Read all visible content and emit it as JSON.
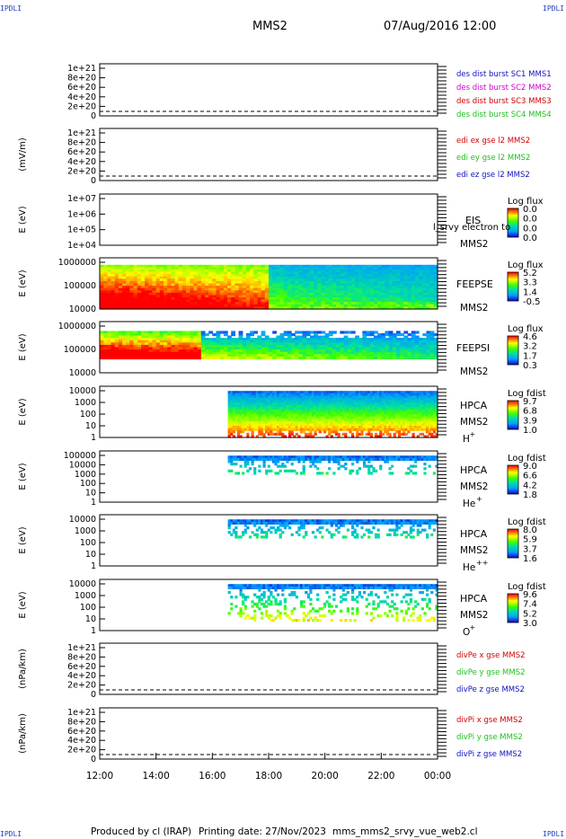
{
  "header": {
    "spacecraft": "MMS2",
    "datetime": "07/Aug/2016 12:00",
    "corner_label": "IPDLI"
  },
  "footer": {
    "producer": "Produced by cl (IRAP)",
    "printing": "Printing date: 27/Nov/2023",
    "script": "mms_mms2_srvy_vue_web2.cl"
  },
  "time_axis": {
    "range_hours": [
      12,
      24
    ],
    "tick_labels": [
      "12:00",
      "14:00",
      "16:00",
      "18:00",
      "20:00",
      "22:00",
      "00:00"
    ]
  },
  "colors": {
    "red": "#d40000",
    "magenta": "#d000d0",
    "green": "#20c020",
    "blue": "#1010c0"
  },
  "chart_data": [
    {
      "type": "line",
      "panel": "des-dist",
      "ylabel": "",
      "y_ticks": [
        "1e+21",
        "8e+20",
        "6e+20",
        "4e+20",
        "2e+20",
        "0"
      ],
      "legend": [
        {
          "text": "des dist burst SC1 MMS1",
          "color": "#1010c0"
        },
        {
          "text": "des dist burst SC2 MMS2",
          "color": "#d000d0"
        },
        {
          "text": "des dist burst SC3 MMS3",
          "color": "#d40000"
        },
        {
          "text": "des dist burst SC4 MMS4",
          "color": "#20c020"
        }
      ],
      "series": []
    },
    {
      "type": "line",
      "panel": "edi",
      "ylabel": "(mV/m)",
      "y_ticks": [
        "1e+21",
        "8e+20",
        "6e+20",
        "4e+20",
        "2e+20",
        "0"
      ],
      "legend": [
        {
          "text": "edi ex gse l2 MMS2",
          "color": "#d40000"
        },
        {
          "text": "edi ey gse l2 MMS2",
          "color": "#20c020"
        },
        {
          "text": "edi ez gse l2 MMS2",
          "color": "#1010c0"
        }
      ],
      "series": []
    },
    {
      "type": "heatmap",
      "panel": "eis",
      "ylabel": "E (eV)",
      "y_ticks": [
        "1e+07",
        "1e+06",
        "1e+05",
        "1e+04"
      ],
      "y_log_range": [
        4,
        7
      ],
      "instrument": "EIS",
      "overlay_text": "l_srvy electron to",
      "sc": "MMS2",
      "species": "",
      "colorbar": {
        "title": "Log flux",
        "ticks": [
          "0.0",
          "0.0",
          "0.0",
          "0.0"
        ]
      },
      "has_data": false
    },
    {
      "type": "heatmap",
      "panel": "feepse",
      "ylabel": "E (eV)",
      "y_ticks": [
        "1000000",
        "100000",
        "10000"
      ],
      "y_log_range": [
        4,
        6
      ],
      "instrument": "FEEPSE",
      "sc": "MMS2",
      "species": "",
      "colorbar": {
        "title": "Log flux",
        "ticks": [
          "5.2",
          "3.3",
          "1.4",
          "-0.5"
        ]
      },
      "has_data": true,
      "data_start_hour": 12,
      "data_end_hour": 24
    },
    {
      "type": "heatmap",
      "panel": "feepsi",
      "ylabel": "E (eV)",
      "y_ticks": [
        "1000000",
        "100000",
        "10000"
      ],
      "y_log_range": [
        4,
        6
      ],
      "instrument": "FEEPSI",
      "sc": "MMS2",
      "species": "",
      "colorbar": {
        "title": "Log flux",
        "ticks": [
          "4.6",
          "3.2",
          "1.7",
          "0.3"
        ]
      },
      "has_data": true,
      "data_start_hour": 12,
      "data_end_hour": 24
    },
    {
      "type": "heatmap",
      "panel": "hpca-h",
      "ylabel": "E (eV)",
      "y_ticks": [
        "10000",
        "1000",
        "100",
        "10",
        "1"
      ],
      "y_log_range": [
        0,
        4.6
      ],
      "instrument": "HPCA",
      "sc": "MMS2",
      "species": "H",
      "charge": "+",
      "colorbar": {
        "title": "Log fdist",
        "ticks": [
          "9.7",
          "6.8",
          "3.9",
          "1.0"
        ]
      },
      "has_data": true,
      "data_start_hour": 16.55,
      "data_end_hour": 24
    },
    {
      "type": "heatmap",
      "panel": "hpca-he",
      "ylabel": "E (eV)",
      "y_ticks": [
        "100000",
        "10000",
        "1000",
        "100",
        "10",
        "1"
      ],
      "y_log_range": [
        0,
        5
      ],
      "instrument": "HPCA",
      "sc": "MMS2",
      "species": "He",
      "charge": "+",
      "colorbar": {
        "title": "Log fdist",
        "ticks": [
          "9.0",
          "6.6",
          "4.2",
          "1.8"
        ]
      },
      "has_data": true,
      "data_start_hour": 16.55,
      "data_end_hour": 24
    },
    {
      "type": "heatmap",
      "panel": "hpca-hepp",
      "ylabel": "E (eV)",
      "y_ticks": [
        "10000",
        "1000",
        "100",
        "10",
        "1"
      ],
      "y_log_range": [
        0,
        4.6
      ],
      "instrument": "HPCA",
      "sc": "MMS2",
      "species": "He",
      "charge": "++",
      "colorbar": {
        "title": "Log fdist",
        "ticks": [
          "8.0",
          "5.9",
          "3.7",
          "1.6"
        ]
      },
      "has_data": true,
      "data_start_hour": 16.55,
      "data_end_hour": 24
    },
    {
      "type": "heatmap",
      "panel": "hpca-o",
      "ylabel": "E (eV)",
      "y_ticks": [
        "10000",
        "1000",
        "100",
        "10",
        "1"
      ],
      "y_log_range": [
        0,
        4.6
      ],
      "instrument": "HPCA",
      "sc": "MMS2",
      "species": "O",
      "charge": "+",
      "colorbar": {
        "title": "Log fdist",
        "ticks": [
          "9.6",
          "7.4",
          "5.2",
          "3.0"
        ]
      },
      "has_data": true,
      "data_start_hour": 16.55,
      "data_end_hour": 24
    },
    {
      "type": "line",
      "panel": "divpe",
      "ylabel": "(nPa/km)",
      "y_ticks": [
        "1e+21",
        "8e+20",
        "6e+20",
        "4e+20",
        "2e+20",
        "0"
      ],
      "legend": [
        {
          "text": "divPe x gse MMS2",
          "color": "#d40000"
        },
        {
          "text": "divPe y gse MMS2",
          "color": "#20c020"
        },
        {
          "text": "divPe z gse MMS2",
          "color": "#1010c0"
        }
      ],
      "series": []
    },
    {
      "type": "line",
      "panel": "divpi",
      "ylabel": "(nPa/km)",
      "y_ticks": [
        "1e+21",
        "8e+20",
        "6e+20",
        "4e+20",
        "2e+20",
        "0"
      ],
      "legend": [
        {
          "text": "divPi x gse MMS2",
          "color": "#d40000"
        },
        {
          "text": "divPi y gse MMS2",
          "color": "#20c020"
        },
        {
          "text": "divPi z gse MMS2",
          "color": "#1010c0"
        }
      ],
      "series": []
    }
  ]
}
